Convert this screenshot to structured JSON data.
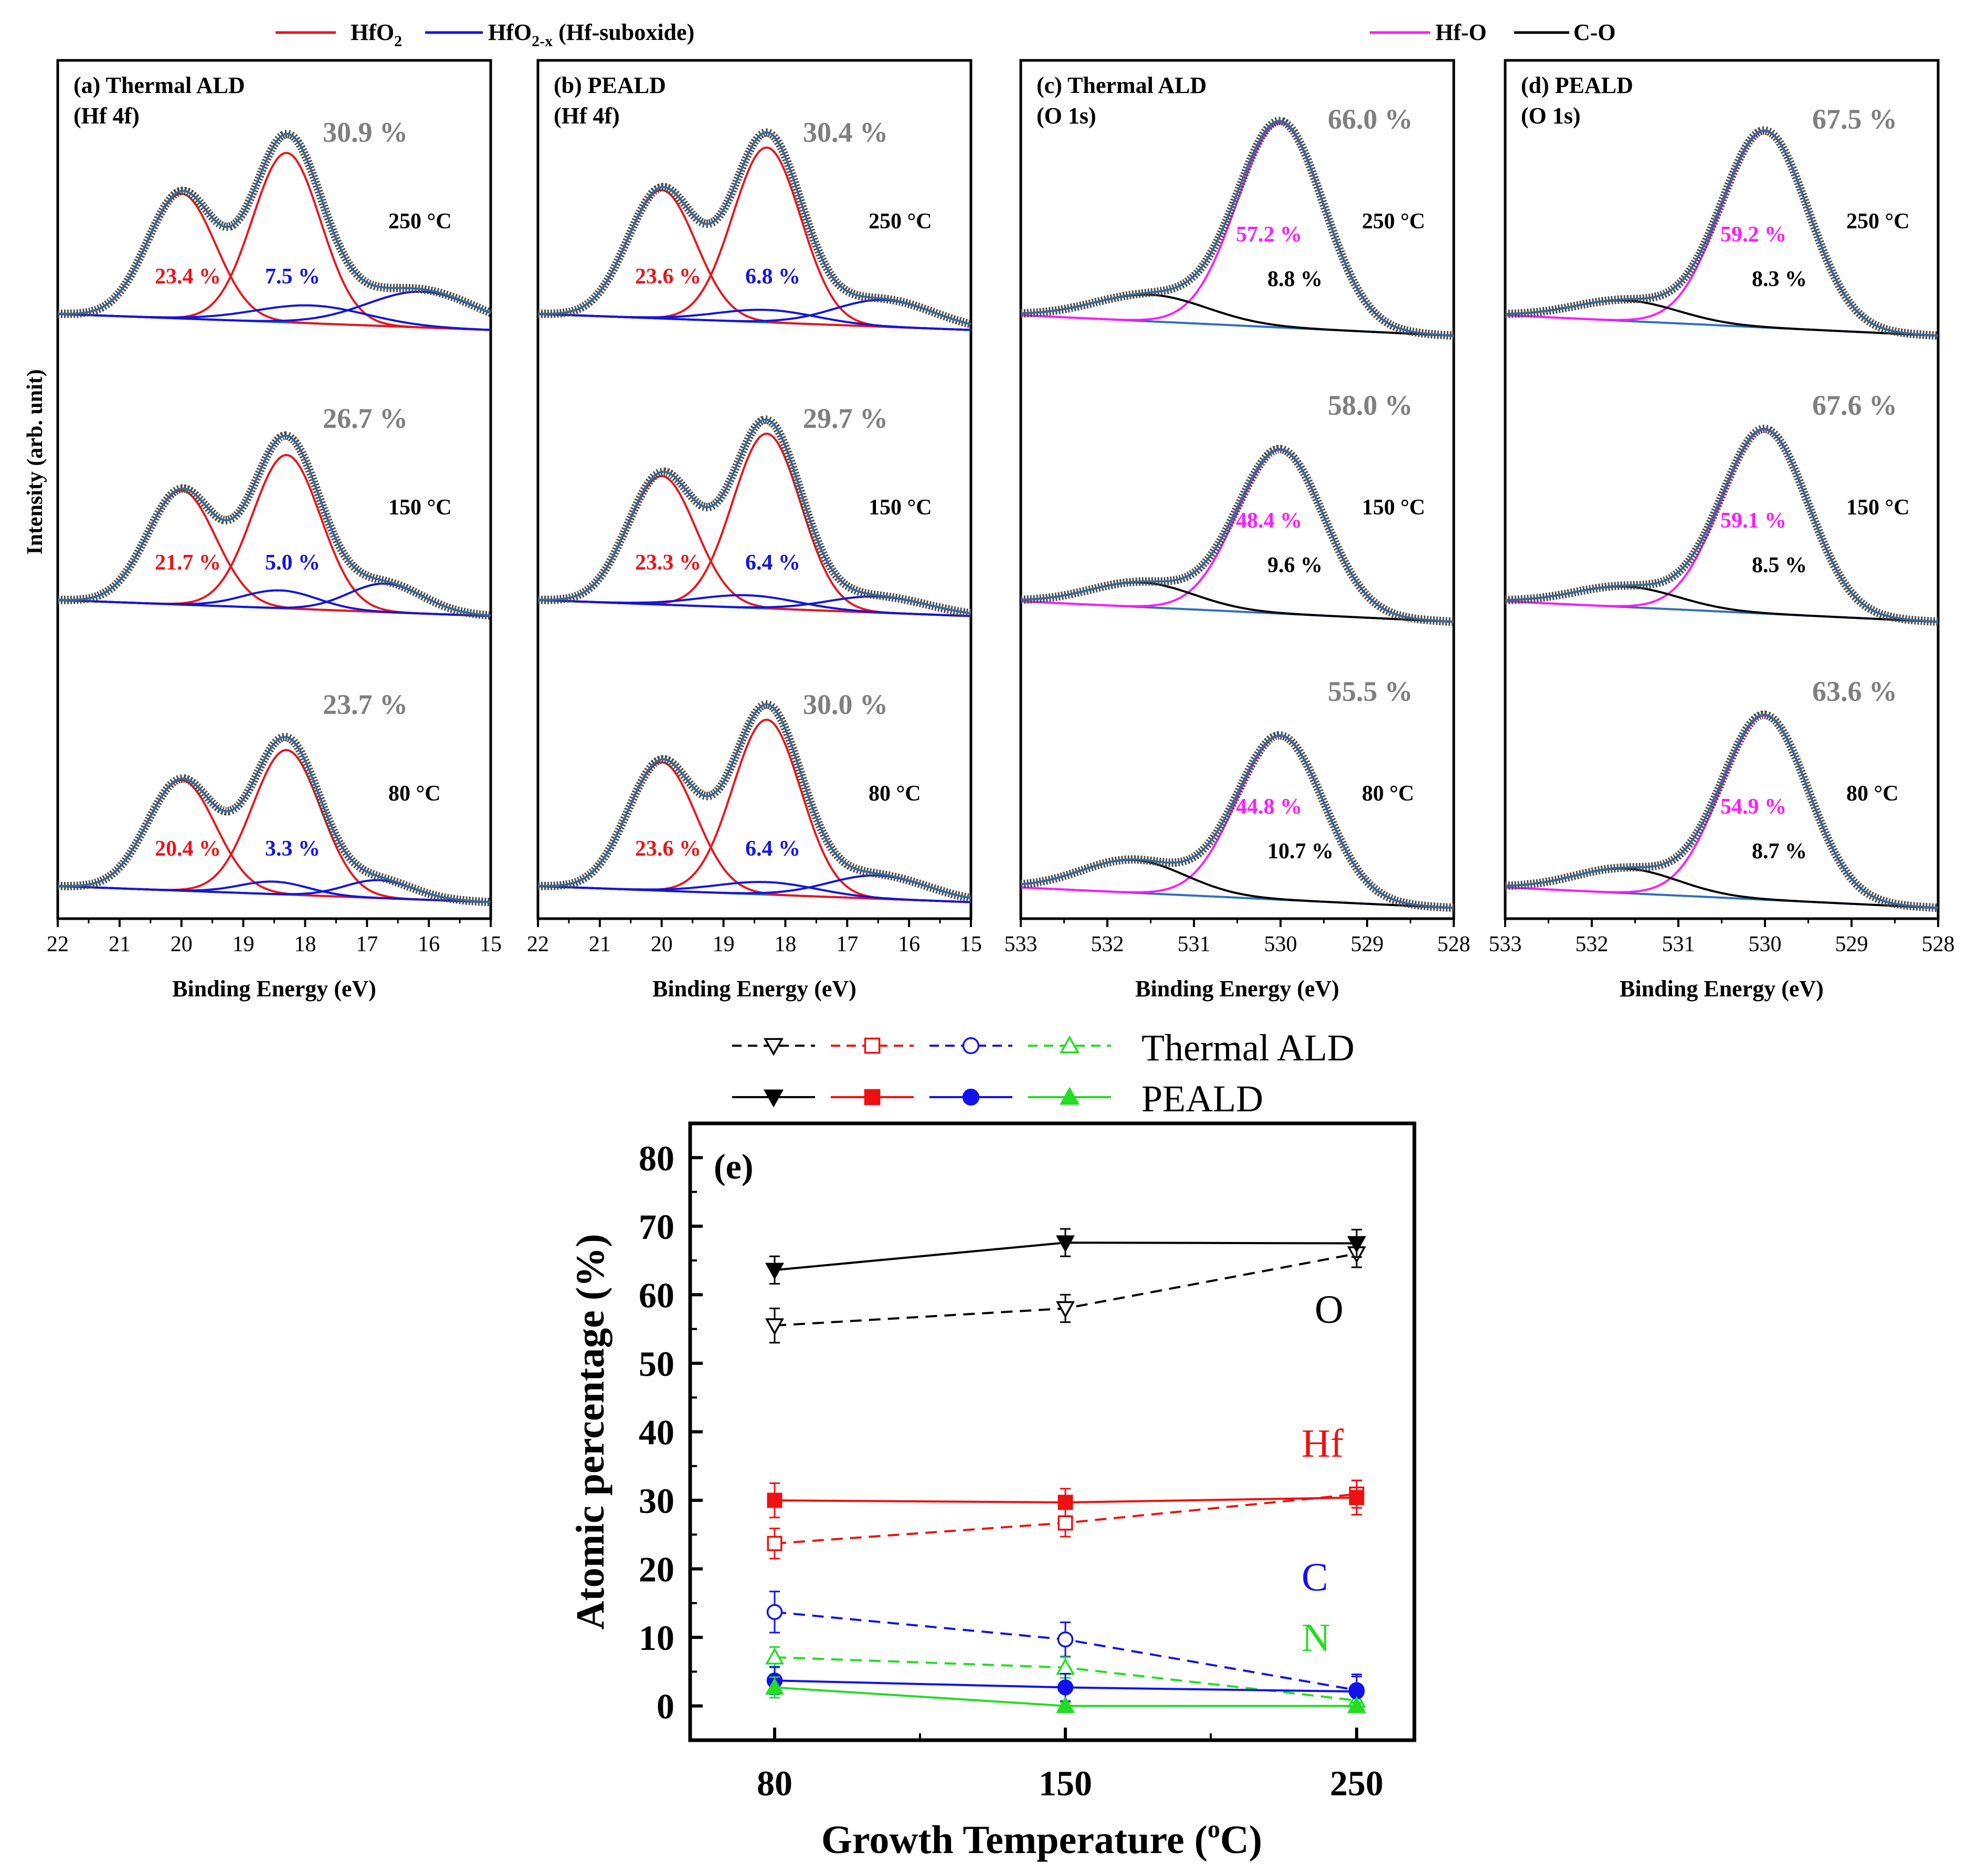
{
  "colors": {
    "hfo2": "#e8161b",
    "suboxide": "#1515d8",
    "hfo": "#ff1aff",
    "co": "#000000",
    "background": "#2f6fc0",
    "raw": "#4a4a4a",
    "envelope": "#3a6a98",
    "pct_gray": "#7f7f7f",
    "o_series": "#000000",
    "hf_series": "#ee1111",
    "c_series": "#1111ee",
    "n_series": "#22dd22"
  },
  "legend_hf": {
    "hfo2_base": "HfO",
    "hfo2_sub": "2",
    "sub_base": "HfO",
    "sub_sub": "2-x",
    "sub_rest": " (Hf-suboxide)"
  },
  "legend_o": {
    "hfo": "Hf-O",
    "co": "C-O"
  },
  "y_label": "Intensity (arb. unit)",
  "legend_e": {
    "thermal": "Thermal ALD",
    "peald": "PEALD"
  },
  "chart_data": [
    {
      "id": "a",
      "type": "line",
      "title": "(a) Thermal ALD",
      "subtitle": "(Hf 4f)",
      "xlabel": "Binding Energy (eV)",
      "xlim": [
        22,
        15
      ],
      "xticks": [
        "22",
        "21",
        "20",
        "19",
        "18",
        "17",
        "16",
        "15"
      ],
      "series_names": [
        "Raw data",
        "Envelope",
        "HfO2",
        "HfO2-x (Hf-suboxide)",
        "Background"
      ],
      "rows": [
        {
          "temp": "250 °C",
          "total": "30.9 %",
          "main_pct": "23.4 %",
          "sub_pct": "7.5 %",
          "peaks": [
            {
              "c": 20.0,
              "w": 0.55,
              "h": 0.7,
              "s": "red"
            },
            {
              "c": 18.3,
              "w": 0.55,
              "h": 0.95,
              "s": "red"
            },
            {
              "c": 17.9,
              "w": 0.9,
              "h": 0.1,
              "s": "blue"
            },
            {
              "c": 16.1,
              "w": 0.9,
              "h": 0.2,
              "s": "blue"
            }
          ]
        },
        {
          "temp": "150 °C",
          "total": "26.7 %",
          "main_pct": "21.7 %",
          "sub_pct": "5.0 %",
          "peaks": [
            {
              "c": 20.0,
              "w": 0.55,
              "h": 0.64,
              "s": "red"
            },
            {
              "c": 18.3,
              "w": 0.55,
              "h": 0.86,
              "s": "red"
            },
            {
              "c": 18.4,
              "w": 0.6,
              "h": 0.1,
              "s": "blue"
            },
            {
              "c": 16.7,
              "w": 0.6,
              "h": 0.16,
              "s": "blue"
            }
          ]
        },
        {
          "temp": "80 °C",
          "total": "23.7 %",
          "main_pct": "20.4 %",
          "sub_pct": "3.3 %",
          "peaks": [
            {
              "c": 20.0,
              "w": 0.55,
              "h": 0.62,
              "s": "red"
            },
            {
              "c": 18.3,
              "w": 0.55,
              "h": 0.81,
              "s": "red"
            },
            {
              "c": 18.5,
              "w": 0.55,
              "h": 0.07,
              "s": "blue"
            },
            {
              "c": 16.8,
              "w": 0.55,
              "h": 0.1,
              "s": "blue"
            }
          ]
        }
      ]
    },
    {
      "id": "b",
      "type": "line",
      "title": "(b) PEALD",
      "subtitle": "(Hf 4f)",
      "xlabel": "Binding Energy (eV)",
      "xlim": [
        22,
        15
      ],
      "xticks": [
        "22",
        "21",
        "20",
        "19",
        "18",
        "17",
        "16",
        "15"
      ],
      "series_names": [
        "Raw data",
        "Envelope",
        "HfO2",
        "HfO2-x (Hf-suboxide)",
        "Background"
      ],
      "rows": [
        {
          "temp": "250 °C",
          "total": "30.4 %",
          "main_pct": "23.6 %",
          "sub_pct": "6.8 %",
          "peaks": [
            {
              "c": 20.0,
              "w": 0.55,
              "h": 0.72,
              "s": "red"
            },
            {
              "c": 18.3,
              "w": 0.55,
              "h": 0.98,
              "s": "red"
            },
            {
              "c": 18.3,
              "w": 0.8,
              "h": 0.07,
              "s": "blue"
            },
            {
              "c": 16.4,
              "w": 0.8,
              "h": 0.15,
              "s": "blue"
            }
          ]
        },
        {
          "temp": "150 °C",
          "total": "29.7 %",
          "main_pct": "23.3 %",
          "sub_pct": "6.4 %",
          "peaks": [
            {
              "c": 20.0,
              "w": 0.55,
              "h": 0.72,
              "s": "red"
            },
            {
              "c": 18.3,
              "w": 0.55,
              "h": 0.98,
              "s": "red"
            },
            {
              "c": 18.6,
              "w": 0.8,
              "h": 0.07,
              "s": "blue"
            },
            {
              "c": 16.5,
              "w": 0.8,
              "h": 0.09,
              "s": "blue"
            }
          ]
        },
        {
          "temp": "80 °C",
          "total": "30.0 %",
          "main_pct": "23.6 %",
          "sub_pct": "6.4 %",
          "peaks": [
            {
              "c": 20.0,
              "w": 0.55,
              "h": 0.72,
              "s": "red"
            },
            {
              "c": 18.3,
              "w": 0.55,
              "h": 0.98,
              "s": "red"
            },
            {
              "c": 18.3,
              "w": 0.8,
              "h": 0.07,
              "s": "blue"
            },
            {
              "c": 16.5,
              "w": 0.8,
              "h": 0.13,
              "s": "blue"
            }
          ]
        }
      ]
    },
    {
      "id": "c",
      "type": "line",
      "title": "(c) Thermal ALD",
      "subtitle": "(O 1s)",
      "xlabel": "Binding Energy (eV)",
      "xlim": [
        533,
        528
      ],
      "xticks": [
        "533",
        "532",
        "531",
        "530",
        "529",
        "528"
      ],
      "series_names": [
        "Raw data",
        "Envelope",
        "Hf-O",
        "C-O",
        "Background"
      ],
      "rows": [
        {
          "temp": "250 °C",
          "total": "66.0 %",
          "main_pct": "57.2 %",
          "sub_pct": "8.8 %",
          "peaks": [
            {
              "c": 530.0,
              "w": 0.5,
              "h": 1.0,
              "s": "magenta"
            },
            {
              "c": 531.5,
              "w": 0.65,
              "h": 0.13,
              "s": "black"
            }
          ]
        },
        {
          "temp": "150 °C",
          "total": "58.0 %",
          "main_pct": "48.4 %",
          "sub_pct": "9.6 %",
          "peaks": [
            {
              "c": 530.0,
              "w": 0.5,
              "h": 0.8,
              "s": "magenta"
            },
            {
              "c": 531.6,
              "w": 0.6,
              "h": 0.12,
              "s": "black"
            }
          ]
        },
        {
          "temp": "80 °C",
          "total": "55.5 %",
          "main_pct": "44.8 %",
          "sub_pct": "10.7 %",
          "peaks": [
            {
              "c": 530.0,
              "w": 0.5,
              "h": 0.8,
              "s": "magenta"
            },
            {
              "c": 531.7,
              "w": 0.6,
              "h": 0.16,
              "s": "black"
            }
          ]
        }
      ]
    },
    {
      "id": "d",
      "type": "line",
      "title": "(d) PEALD",
      "subtitle": "(O 1s)",
      "xlabel": "Binding Energy (eV)",
      "xlim": [
        533,
        528
      ],
      "xticks": [
        "533",
        "532",
        "531",
        "530",
        "529",
        "528"
      ],
      "series_names": [
        "Raw data",
        "Envelope",
        "Hf-O",
        "C-O",
        "Background"
      ],
      "rows": [
        {
          "temp": "250 °C",
          "total": "67.5 %",
          "main_pct": "59.2 %",
          "sub_pct": "8.3 %",
          "peaks": [
            {
              "c": 530.0,
              "w": 0.5,
              "h": 0.96,
              "s": "magenta"
            },
            {
              "c": 531.6,
              "w": 0.6,
              "h": 0.1,
              "s": "black"
            }
          ]
        },
        {
          "temp": "150 °C",
          "total": "67.6 %",
          "main_pct": "59.1 %",
          "sub_pct": "8.5 %",
          "peaks": [
            {
              "c": 530.0,
              "w": 0.5,
              "h": 0.9,
              "s": "magenta"
            },
            {
              "c": 531.6,
              "w": 0.6,
              "h": 0.1,
              "s": "black"
            }
          ]
        },
        {
          "temp": "80 °C",
          "total": "63.6 %",
          "main_pct": "54.9 %",
          "sub_pct": "8.7 %",
          "peaks": [
            {
              "c": 530.0,
              "w": 0.5,
              "h": 0.9,
              "s": "magenta"
            },
            {
              "c": 531.6,
              "w": 0.6,
              "h": 0.12,
              "s": "black"
            }
          ]
        }
      ]
    },
    {
      "id": "e",
      "type": "line",
      "title": "(e)",
      "xlabel_base": "Growth Temperature (",
      "xlabel_sup": "o",
      "xlabel_tail": "C)",
      "ylabel": "Atomic percentage (%)",
      "categories": [
        "80",
        "150",
        "250"
      ],
      "ylim": [
        -5,
        85
      ],
      "yticks": [
        "0",
        "10",
        "20",
        "30",
        "40",
        "50",
        "60",
        "70",
        "80"
      ],
      "element_labels": [
        "O",
        "Hf",
        "C",
        "N"
      ],
      "series": [
        {
          "name": "O Thermal ALD",
          "group": "Thermal ALD",
          "element": "O",
          "marker": "tri-down-open",
          "dash": true,
          "values": [
            55.5,
            58.0,
            66.0
          ],
          "err": [
            2.5,
            2.0,
            2.0
          ]
        },
        {
          "name": "Hf Thermal ALD",
          "group": "Thermal ALD",
          "element": "Hf",
          "marker": "square-open",
          "dash": true,
          "values": [
            23.7,
            26.7,
            30.9
          ],
          "err": [
            2.2,
            2.0,
            2.0
          ]
        },
        {
          "name": "C Thermal ALD",
          "group": "Thermal ALD",
          "element": "C",
          "marker": "circle-open",
          "dash": true,
          "values": [
            13.7,
            9.7,
            2.3
          ],
          "err": [
            3.0,
            2.5,
            2.0
          ]
        },
        {
          "name": "N Thermal ALD",
          "group": "Thermal ALD",
          "element": "N",
          "marker": "tri-up-open",
          "dash": true,
          "values": [
            7.1,
            5.6,
            0.8
          ],
          "err": [
            1.5,
            1.5,
            1.0
          ]
        },
        {
          "name": "O PEALD",
          "group": "PEALD",
          "element": "O",
          "marker": "tri-down-filled",
          "dash": false,
          "values": [
            63.6,
            67.6,
            67.5
          ],
          "err": [
            2.0,
            2.0,
            2.0
          ]
        },
        {
          "name": "Hf PEALD",
          "group": "PEALD",
          "element": "Hf",
          "marker": "square-filled",
          "dash": false,
          "values": [
            30.0,
            29.7,
            30.4
          ],
          "err": [
            2.5,
            2.0,
            2.5
          ]
        },
        {
          "name": "C PEALD",
          "group": "PEALD",
          "element": "C",
          "marker": "circle-filled",
          "dash": false,
          "values": [
            3.7,
            2.7,
            2.1
          ],
          "err": [
            2.0,
            2.0,
            2.5
          ]
        },
        {
          "name": "N PEALD",
          "group": "PEALD",
          "element": "N",
          "marker": "tri-up-filled",
          "dash": false,
          "values": [
            2.7,
            0.0,
            0.0
          ],
          "err": [
            1.5,
            0.5,
            0.5
          ]
        }
      ]
    }
  ]
}
